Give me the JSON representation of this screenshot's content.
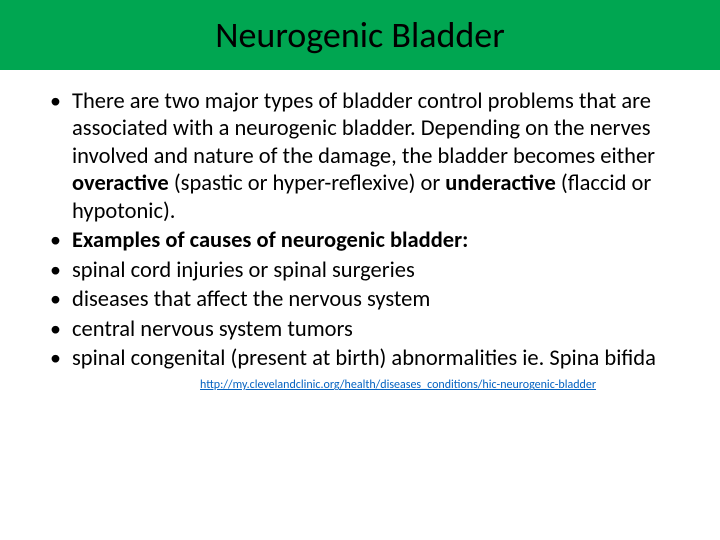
{
  "title_bar": {
    "background_color": "#00a651",
    "title": "Neurogenic Bladder",
    "title_fontsize": 36,
    "title_color": "#000000"
  },
  "content": {
    "bullets": [
      {
        "segments": [
          {
            "text": "There are two major types of bladder control problems that are associated with a neurogenic bladder. Depending on the nerves involved and nature of the damage, the bladder becomes either ",
            "bold": false
          },
          {
            "text": "overactive",
            "bold": true
          },
          {
            "text": " (spastic or hyper-reflexive) or ",
            "bold": false
          },
          {
            "text": "underactive",
            "bold": true
          },
          {
            "text": " (flaccid or hypotonic).",
            "bold": false
          }
        ]
      },
      {
        "segments": [
          {
            "text": "Examples of causes of neurogenic bladder:",
            "bold": true
          }
        ]
      },
      {
        "segments": [
          {
            "text": "spinal cord injuries or spinal surgeries",
            "bold": false
          }
        ]
      },
      {
        "segments": [
          {
            "text": "diseases that affect the nervous system",
            "bold": false
          }
        ]
      },
      {
        "segments": [
          {
            "text": "central nervous system tumors",
            "bold": false
          }
        ]
      },
      {
        "segments": [
          {
            "text": "spinal congenital (present at birth) abnormalities ie. Spina bifida",
            "bold": false
          }
        ]
      }
    ],
    "fontsize": 22.5,
    "text_color": "#000000"
  },
  "footer": {
    "url": "http://my.clevelandclinic.org/health/diseases_conditions/hic-neurogenic-bladder",
    "link_color": "#0563c1",
    "fontsize": 12
  }
}
